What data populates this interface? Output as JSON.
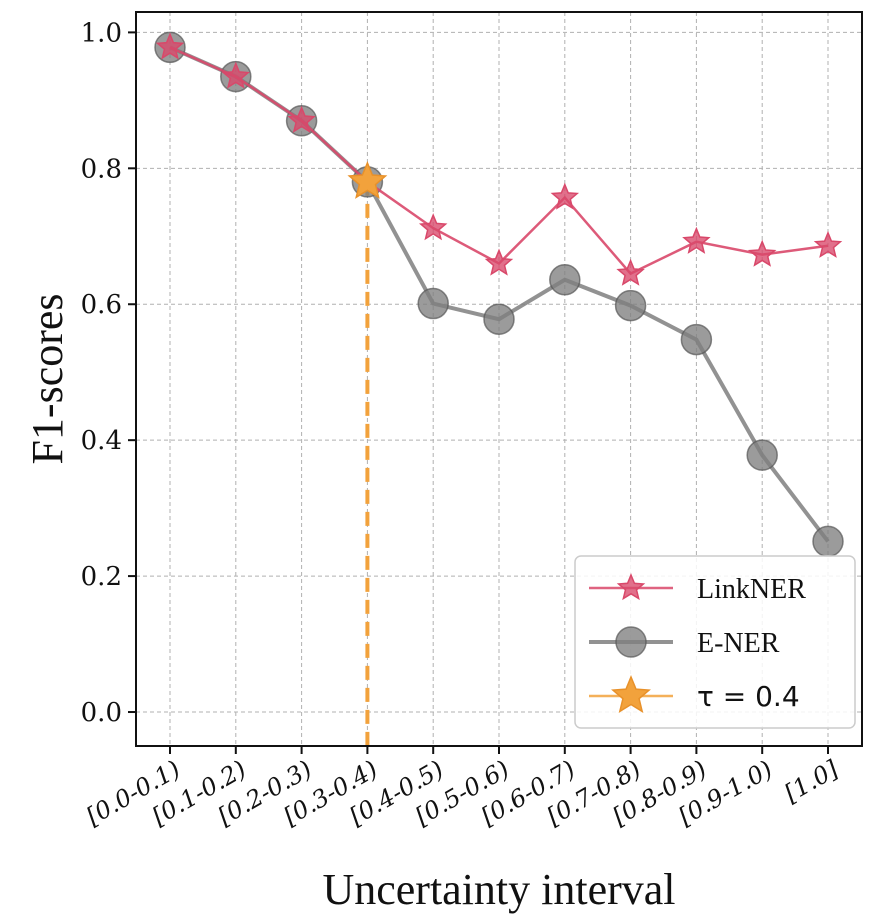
{
  "chart_data": {
    "type": "line",
    "title": "",
    "xlabel": "Uncertainty interval",
    "ylabel": "F1-scores",
    "categories": [
      "[0.0-0.1)",
      "[0.1-0.2)",
      "[0.2-0.3)",
      "[0.3-0.4)",
      "[0.4-0.5)",
      "[0.5-0.6)",
      "[0.6-0.7)",
      "[0.7-0.8)",
      "[0.8-0.9)",
      "[0.9-1.0)",
      "[1.0]"
    ],
    "ylim": [
      -0.05,
      1.03
    ],
    "yticks": [
      0.0,
      0.2,
      0.4,
      0.6,
      0.8,
      1.0
    ],
    "ytick_labels": [
      "0.0",
      "0.2",
      "0.4",
      "0.6",
      "0.8",
      "1.0"
    ],
    "grid": true,
    "legend_position": "bottom-right",
    "series": [
      {
        "name": "LinkNER",
        "marker": "star",
        "color": "#d9486a",
        "values": [
          0.978,
          0.935,
          0.87,
          0.78,
          0.712,
          0.66,
          0.757,
          0.645,
          0.692,
          0.673,
          0.686
        ]
      },
      {
        "name": "E-NER",
        "marker": "circle",
        "color": "#7f7f7f",
        "values": [
          0.978,
          0.935,
          0.87,
          0.78,
          0.601,
          0.578,
          0.636,
          0.598,
          0.548,
          0.378,
          0.251
        ]
      }
    ],
    "threshold": {
      "label": "τ = 0.4",
      "category_index": 3,
      "value": 0.78,
      "color": "#f2a23c"
    }
  }
}
